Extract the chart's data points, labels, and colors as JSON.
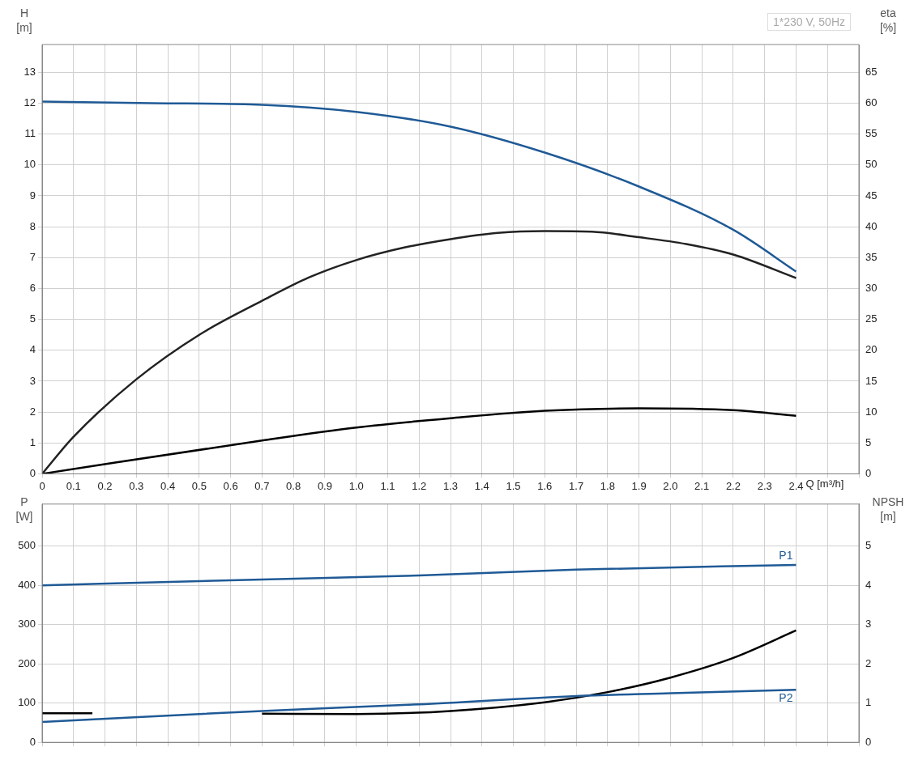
{
  "chart_data": [
    {
      "type": "line",
      "xlabel": "Q [m³/h]",
      "ylabel": "H\n[m]",
      "y2label": "eta\n[%]",
      "annotations": [
        "1*230 V, 50Hz"
      ],
      "grid": true,
      "marker": "none",
      "xlim": [
        0,
        2.6
      ],
      "xticks": [
        0,
        0.1,
        0.2,
        0.3,
        0.4,
        0.5,
        0.6,
        0.7,
        0.8,
        0.9,
        {
          "value": 1,
          "label": "1.0"
        },
        1.1,
        1.2,
        1.3,
        1.4,
        1.5,
        1.6,
        1.7,
        1.8,
        1.9,
        {
          "value": 2,
          "label": "2.0"
        },
        2.1,
        2.2,
        2.3,
        2.4,
        {
          "value": 2.5,
          "label": null
        },
        {
          "value": 2.6,
          "label": null
        }
      ],
      "ylim": [
        0,
        13.9
      ],
      "yticks": [
        0,
        1,
        2,
        3,
        4,
        5,
        6,
        7,
        8,
        9,
        10,
        11,
        12,
        13
      ],
      "y2lim": [
        0,
        69.5
      ],
      "y2ticks": [
        0,
        5,
        10,
        15,
        20,
        25,
        30,
        35,
        40,
        45,
        50,
        55,
        60,
        65
      ],
      "series": [
        {
          "color": "#1f5a96",
          "x": [
            0,
            0.35,
            0.7,
            1.0,
            1.3,
            1.6,
            1.9,
            2.2,
            2.4
          ],
          "values": [
            12.05,
            12.0,
            11.95,
            11.72,
            11.24,
            10.4,
            9.3,
            7.9,
            6.55
          ]
        },
        {
          "color": "#222222",
          "axis": "y2",
          "x": [
            0,
            0.1,
            0.3,
            0.5,
            0.7,
            0.85,
            1.0,
            1.15,
            1.3,
            1.45,
            1.6,
            1.75,
            1.9,
            2.05,
            2.2,
            2.4
          ],
          "values": [
            0,
            6,
            15.3,
            22.5,
            28,
            31.8,
            34.6,
            36.6,
            38,
            39,
            39.3,
            39.2,
            38.3,
            37.2,
            35.5,
            31.7
          ]
        },
        {
          "color": "#000000",
          "axis": "y2",
          "x": [
            0,
            0.7,
            1.0,
            1.3,
            1.6,
            1.9,
            2.2,
            2.4
          ],
          "values": [
            0,
            5.4,
            7.5,
            9,
            10.2,
            10.6,
            10.3,
            9.4
          ]
        }
      ]
    },
    {
      "type": "line",
      "ylabel": "P\n[W]",
      "y2label": "NPSH\n[m]",
      "grid": true,
      "marker": "none",
      "tick_labels": "y",
      "xlim": [
        0,
        2.6
      ],
      "xticks": [
        0,
        0.1,
        0.2,
        0.3,
        0.4,
        0.5,
        0.6,
        0.7,
        0.8,
        0.9,
        1,
        1.1,
        1.2,
        1.3,
        1.4,
        1.5,
        1.6,
        1.7,
        1.8,
        1.9,
        2,
        2.1,
        2.2,
        2.3,
        2.4,
        2.5,
        2.6
      ],
      "ylim": [
        0,
        607
      ],
      "yticks": [
        0,
        100,
        200,
        300,
        400,
        500
      ],
      "y2lim": [
        0,
        6.07
      ],
      "y2ticks": [
        0,
        1,
        2,
        3,
        4,
        5
      ],
      "series": [
        {
          "name": "P1",
          "color": "#1f5a96",
          "x": [
            0,
            0.7,
            1.2,
            1.7,
            2.4
          ],
          "values": [
            400,
            415,
            425,
            440,
            452
          ]
        },
        {
          "name": "P2",
          "color": "#1f5a96",
          "x": [
            0,
            0.7,
            1.2,
            1.7,
            2.0,
            2.4
          ],
          "values": [
            52,
            80,
            97,
            118,
            125,
            134
          ]
        },
        {
          "color": "#000000",
          "axis": "y2",
          "x": [
            0,
            0.16,
            0.4,
            0.7,
            1.0,
            1.3,
            1.6,
            1.8,
            2.0,
            2.2,
            2.4
          ],
          "values": [
            0.74,
            0.74,
            null,
            0.73,
            0.72,
            0.8,
            1.02,
            1.28,
            1.65,
            2.15,
            2.85
          ]
        }
      ]
    }
  ]
}
